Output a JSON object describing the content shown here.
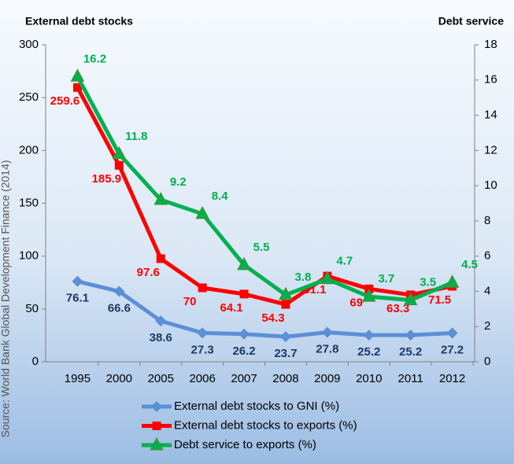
{
  "chart_data": {
    "type": "line",
    "y_title": "External debt stocks",
    "y2_title": "Debt service",
    "source": "Source: World Bank Global Development Finance (2014)",
    "categories": [
      "1995",
      "2000",
      "2005",
      "2006",
      "2007",
      "2008",
      "2009",
      "2010",
      "2011",
      "2012"
    ],
    "series": [
      {
        "name": "External debt stocks to GNI (%)",
        "color": "#5b8fd6",
        "label_color": "#1f3864",
        "marker": "diamond",
        "values": [
          76.1,
          66.6,
          38.6,
          27.3,
          26.2,
          23.7,
          27.8,
          25.2,
          25.2,
          27.2
        ]
      },
      {
        "name": "External debt stocks to exports (%)",
        "color": "#ff0000",
        "label_color": "#ff0000",
        "marker": "square",
        "values": [
          259.6,
          185.9,
          97.6,
          70,
          64.1,
          54.3,
          81.1,
          69,
          63.3,
          71.5
        ]
      },
      {
        "name": "Debt service to exports (%)",
        "color": "#00b050",
        "label_color": "#00b050",
        "marker": "triangle",
        "axis": "y2",
        "values": [
          16.2,
          11.8,
          9.2,
          8.4,
          5.5,
          3.8,
          4.7,
          3.7,
          3.5,
          4.5
        ]
      }
    ],
    "ylim": [
      0,
      300
    ],
    "yticks": [
      0,
      50,
      100,
      150,
      200,
      250,
      300
    ],
    "y2lim": [
      0,
      18
    ],
    "y2ticks": [
      0,
      2,
      4,
      6,
      8,
      10,
      12,
      14,
      16,
      18
    ]
  }
}
